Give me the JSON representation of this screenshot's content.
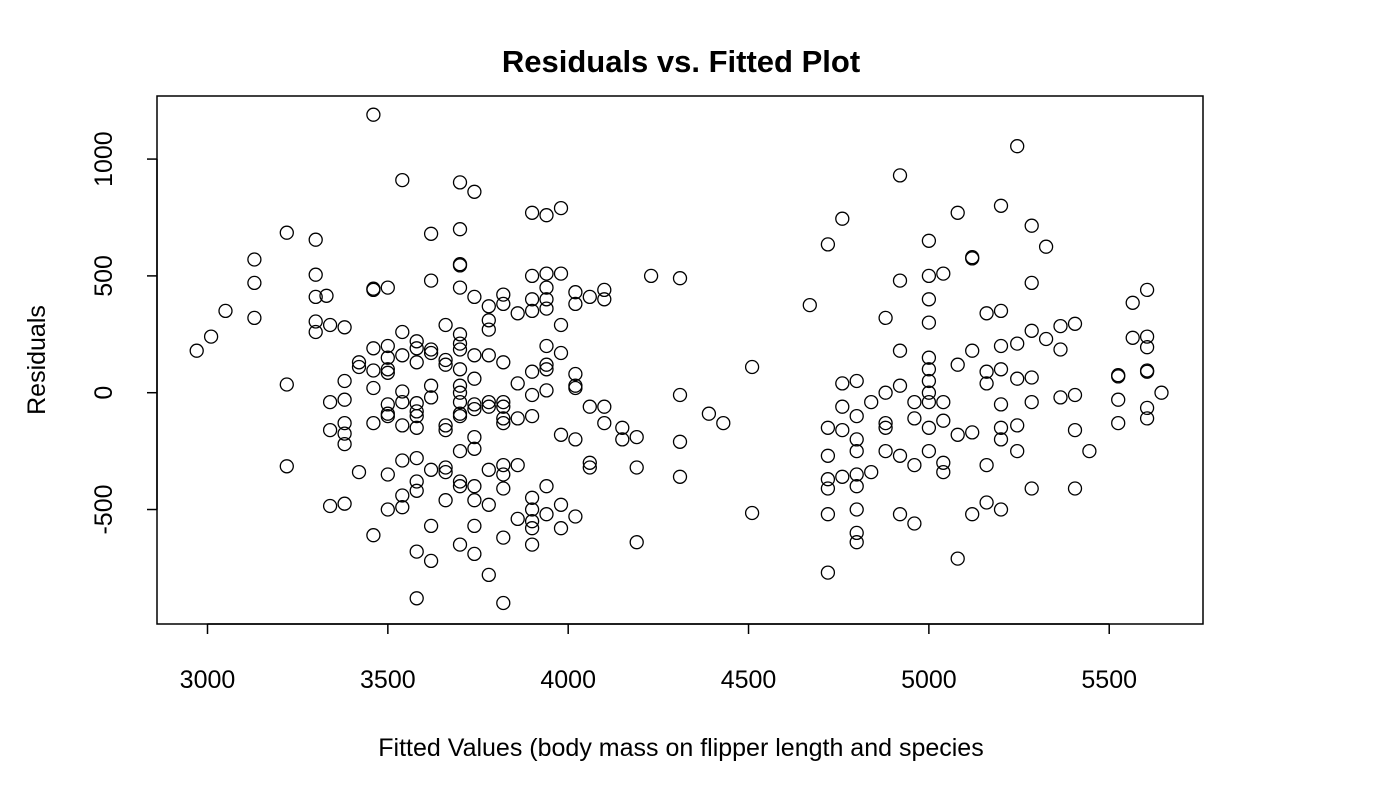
{
  "chart_data": {
    "type": "scatter",
    "title": "Residuals vs. Fitted Plot",
    "xlabel": "Fitted Values (body mass on flipper length and species",
    "ylabel": "Residuals",
    "xlim": [
      2860,
      5760
    ],
    "ylim": [
      -990,
      1270
    ],
    "xticks": [
      3000,
      3500,
      4000,
      4500,
      5000,
      5500
    ],
    "xtick_labels": [
      "3000",
      "3500",
      "4000",
      "4500",
      "5000",
      "5500"
    ],
    "yticks": [
      -500,
      0,
      500,
      1000
    ],
    "ytick_labels": [
      "-500",
      "0",
      "500",
      "1000"
    ],
    "grid": false,
    "legend": "none",
    "marker": "open-circle",
    "color": "#000000",
    "series": [
      {
        "points": [
          [
            2970,
            180
          ],
          [
            3010,
            240
          ],
          [
            3050,
            350
          ],
          [
            3130,
            570
          ],
          [
            3130,
            470
          ],
          [
            3130,
            320
          ],
          [
            3220,
            685
          ],
          [
            3220,
            35
          ],
          [
            3220,
            -315
          ],
          [
            3300,
            655
          ],
          [
            3300,
            505
          ],
          [
            3300,
            410
          ],
          [
            3300,
            305
          ],
          [
            3300,
            260
          ],
          [
            3330,
            415
          ],
          [
            3340,
            290
          ],
          [
            3340,
            -40
          ],
          [
            3340,
            -160
          ],
          [
            3340,
            -485
          ],
          [
            3380,
            280
          ],
          [
            3380,
            50
          ],
          [
            3380,
            -30
          ],
          [
            3380,
            -130
          ],
          [
            3380,
            -175
          ],
          [
            3380,
            -220
          ],
          [
            3380,
            -475
          ],
          [
            3420,
            130
          ],
          [
            3420,
            110
          ],
          [
            3420,
            -340
          ],
          [
            3460,
            1190
          ],
          [
            3460,
            445
          ],
          [
            3460,
            440
          ],
          [
            3460,
            190
          ],
          [
            3460,
            95
          ],
          [
            3460,
            20
          ],
          [
            3460,
            -130
          ],
          [
            3460,
            -610
          ],
          [
            3500,
            450
          ],
          [
            3500,
            200
          ],
          [
            3500,
            150
          ],
          [
            3500,
            100
          ],
          [
            3500,
            85
          ],
          [
            3500,
            -50
          ],
          [
            3500,
            -90
          ],
          [
            3500,
            -100
          ],
          [
            3500,
            -350
          ],
          [
            3500,
            -500
          ],
          [
            3540,
            910
          ],
          [
            3540,
            260
          ],
          [
            3540,
            160
          ],
          [
            3540,
            5
          ],
          [
            3540,
            -40
          ],
          [
            3540,
            -140
          ],
          [
            3540,
            -290
          ],
          [
            3540,
            -440
          ],
          [
            3540,
            -490
          ],
          [
            3580,
            220
          ],
          [
            3580,
            190
          ],
          [
            3580,
            130
          ],
          [
            3580,
            -45
          ],
          [
            3580,
            -80
          ],
          [
            3580,
            -100
          ],
          [
            3580,
            -150
          ],
          [
            3580,
            -280
          ],
          [
            3580,
            -380
          ],
          [
            3580,
            -420
          ],
          [
            3580,
            -680
          ],
          [
            3580,
            -880
          ],
          [
            3620,
            680
          ],
          [
            3620,
            480
          ],
          [
            3620,
            185
          ],
          [
            3620,
            170
          ],
          [
            3620,
            30
          ],
          [
            3620,
            -20
          ],
          [
            3620,
            -330
          ],
          [
            3620,
            -570
          ],
          [
            3620,
            -720
          ],
          [
            3660,
            290
          ],
          [
            3660,
            140
          ],
          [
            3660,
            120
          ],
          [
            3660,
            -140
          ],
          [
            3660,
            -160
          ],
          [
            3660,
            -320
          ],
          [
            3660,
            -340
          ],
          [
            3660,
            -460
          ],
          [
            3700,
            900
          ],
          [
            3700,
            700
          ],
          [
            3700,
            550
          ],
          [
            3700,
            545
          ],
          [
            3700,
            450
          ],
          [
            3700,
            250
          ],
          [
            3700,
            210
          ],
          [
            3700,
            185
          ],
          [
            3700,
            100
          ],
          [
            3700,
            30
          ],
          [
            3700,
            0
          ],
          [
            3700,
            -40
          ],
          [
            3700,
            -90
          ],
          [
            3700,
            -100
          ],
          [
            3700,
            -250
          ],
          [
            3700,
            -380
          ],
          [
            3700,
            -400
          ],
          [
            3700,
            -650
          ],
          [
            3740,
            860
          ],
          [
            3740,
            410
          ],
          [
            3740,
            160
          ],
          [
            3740,
            60
          ],
          [
            3740,
            -50
          ],
          [
            3740,
            -70
          ],
          [
            3740,
            -190
          ],
          [
            3740,
            -240
          ],
          [
            3740,
            -400
          ],
          [
            3740,
            -460
          ],
          [
            3740,
            -570
          ],
          [
            3740,
            -690
          ],
          [
            3780,
            370
          ],
          [
            3780,
            310
          ],
          [
            3780,
            270
          ],
          [
            3780,
            160
          ],
          [
            3780,
            -40
          ],
          [
            3780,
            -60
          ],
          [
            3780,
            -330
          ],
          [
            3780,
            -480
          ],
          [
            3780,
            -780
          ],
          [
            3820,
            420
          ],
          [
            3820,
            380
          ],
          [
            3820,
            130
          ],
          [
            3820,
            -40
          ],
          [
            3820,
            -60
          ],
          [
            3820,
            -110
          ],
          [
            3820,
            -130
          ],
          [
            3820,
            -310
          ],
          [
            3820,
            -350
          ],
          [
            3820,
            -410
          ],
          [
            3820,
            -620
          ],
          [
            3820,
            -900
          ],
          [
            3860,
            340
          ],
          [
            3860,
            40
          ],
          [
            3860,
            -110
          ],
          [
            3860,
            -310
          ],
          [
            3860,
            -540
          ],
          [
            3900,
            770
          ],
          [
            3900,
            500
          ],
          [
            3900,
            400
          ],
          [
            3900,
            350
          ],
          [
            3900,
            90
          ],
          [
            3900,
            -10
          ],
          [
            3900,
            -100
          ],
          [
            3900,
            -450
          ],
          [
            3900,
            -500
          ],
          [
            3900,
            -550
          ],
          [
            3900,
            -580
          ],
          [
            3900,
            -650
          ],
          [
            3940,
            760
          ],
          [
            3940,
            510
          ],
          [
            3940,
            450
          ],
          [
            3940,
            400
          ],
          [
            3940,
            360
          ],
          [
            3940,
            200
          ],
          [
            3940,
            120
          ],
          [
            3940,
            100
          ],
          [
            3940,
            10
          ],
          [
            3940,
            -400
          ],
          [
            3940,
            -520
          ],
          [
            3980,
            790
          ],
          [
            3980,
            510
          ],
          [
            3980,
            290
          ],
          [
            3980,
            170
          ],
          [
            3980,
            -180
          ],
          [
            3980,
            -480
          ],
          [
            3980,
            -580
          ],
          [
            4020,
            430
          ],
          [
            4020,
            380
          ],
          [
            4020,
            80
          ],
          [
            4020,
            30
          ],
          [
            4020,
            20
          ],
          [
            4020,
            -200
          ],
          [
            4020,
            -530
          ],
          [
            4060,
            410
          ],
          [
            4060,
            -60
          ],
          [
            4060,
            -300
          ],
          [
            4060,
            -320
          ],
          [
            4100,
            440
          ],
          [
            4100,
            400
          ],
          [
            4100,
            -60
          ],
          [
            4100,
            -130
          ],
          [
            4150,
            -150
          ],
          [
            4150,
            -200
          ],
          [
            4190,
            -190
          ],
          [
            4190,
            -320
          ],
          [
            4190,
            -640
          ],
          [
            4230,
            500
          ],
          [
            4310,
            490
          ],
          [
            4310,
            -10
          ],
          [
            4310,
            -210
          ],
          [
            4310,
            -360
          ],
          [
            4390,
            -90
          ],
          [
            4430,
            -130
          ],
          [
            4510,
            110
          ],
          [
            4510,
            -515
          ],
          [
            4670,
            375
          ],
          [
            4720,
            635
          ],
          [
            4720,
            -150
          ],
          [
            4720,
            -270
          ],
          [
            4720,
            -370
          ],
          [
            4720,
            -410
          ],
          [
            4720,
            -520
          ],
          [
            4720,
            -770
          ],
          [
            4760,
            745
          ],
          [
            4760,
            40
          ],
          [
            4760,
            -60
          ],
          [
            4760,
            -160
          ],
          [
            4760,
            -360
          ],
          [
            4800,
            50
          ],
          [
            4800,
            -100
          ],
          [
            4800,
            -200
          ],
          [
            4800,
            -250
          ],
          [
            4800,
            -350
          ],
          [
            4800,
            -400
          ],
          [
            4800,
            -500
          ],
          [
            4800,
            -600
          ],
          [
            4800,
            -640
          ],
          [
            4840,
            -40
          ],
          [
            4840,
            -340
          ],
          [
            4880,
            320
          ],
          [
            4880,
            0
          ],
          [
            4880,
            -130
          ],
          [
            4880,
            -150
          ],
          [
            4880,
            -250
          ],
          [
            4920,
            930
          ],
          [
            4920,
            480
          ],
          [
            4920,
            180
          ],
          [
            4920,
            30
          ],
          [
            4920,
            -270
          ],
          [
            4920,
            -520
          ],
          [
            4960,
            -40
          ],
          [
            4960,
            -110
          ],
          [
            4960,
            -310
          ],
          [
            4960,
            -560
          ],
          [
            5000,
            650
          ],
          [
            5000,
            500
          ],
          [
            5000,
            400
          ],
          [
            5000,
            300
          ],
          [
            5000,
            150
          ],
          [
            5000,
            100
          ],
          [
            5000,
            50
          ],
          [
            5000,
            0
          ],
          [
            5000,
            -40
          ],
          [
            5000,
            -150
          ],
          [
            5000,
            -250
          ],
          [
            5040,
            510
          ],
          [
            5040,
            -40
          ],
          [
            5040,
            -120
          ],
          [
            5040,
            -300
          ],
          [
            5040,
            -340
          ],
          [
            5080,
            770
          ],
          [
            5080,
            120
          ],
          [
            5080,
            -180
          ],
          [
            5080,
            -710
          ],
          [
            5120,
            580
          ],
          [
            5120,
            575
          ],
          [
            5120,
            180
          ],
          [
            5120,
            -170
          ],
          [
            5120,
            -520
          ],
          [
            5160,
            340
          ],
          [
            5160,
            90
          ],
          [
            5160,
            40
          ],
          [
            5160,
            -310
          ],
          [
            5160,
            -470
          ],
          [
            5200,
            800
          ],
          [
            5200,
            350
          ],
          [
            5200,
            200
          ],
          [
            5200,
            100
          ],
          [
            5200,
            -50
          ],
          [
            5200,
            -150
          ],
          [
            5200,
            -200
          ],
          [
            5200,
            -500
          ],
          [
            5245,
            1055
          ],
          [
            5245,
            210
          ],
          [
            5245,
            60
          ],
          [
            5245,
            -140
          ],
          [
            5245,
            -250
          ],
          [
            5285,
            715
          ],
          [
            5285,
            470
          ],
          [
            5285,
            265
          ],
          [
            5285,
            65
          ],
          [
            5285,
            -40
          ],
          [
            5285,
            -410
          ],
          [
            5325,
            625
          ],
          [
            5325,
            230
          ],
          [
            5365,
            285
          ],
          [
            5365,
            185
          ],
          [
            5365,
            -20
          ],
          [
            5405,
            295
          ],
          [
            5405,
            -10
          ],
          [
            5405,
            -160
          ],
          [
            5405,
            -410
          ],
          [
            5445,
            -250
          ],
          [
            5525,
            75
          ],
          [
            5525,
            70
          ],
          [
            5525,
            -30
          ],
          [
            5525,
            -130
          ],
          [
            5565,
            385
          ],
          [
            5565,
            235
          ],
          [
            5605,
            440
          ],
          [
            5605,
            240
          ],
          [
            5605,
            195
          ],
          [
            5605,
            95
          ],
          [
            5605,
            90
          ],
          [
            5605,
            -65
          ],
          [
            5605,
            -110
          ],
          [
            5645,
            0
          ]
        ]
      }
    ]
  }
}
